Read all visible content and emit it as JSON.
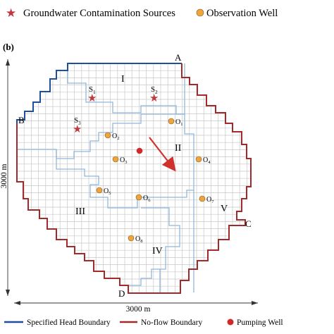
{
  "legend_top": {
    "sources_label": "Groundwater Contamination Sources",
    "well_label": "Observation Well"
  },
  "panel_label": "(b)",
  "corners": [
    "A",
    "B",
    "C",
    "D"
  ],
  "zones": [
    "I",
    "II",
    "III",
    "IV",
    "V"
  ],
  "sources": [
    {
      "label": "S",
      "sub": "1"
    },
    {
      "label": "S",
      "sub": "2"
    },
    {
      "label": "S",
      "sub": "3"
    }
  ],
  "wells": [
    {
      "label": "O",
      "sub": "1"
    },
    {
      "label": "O",
      "sub": "2"
    },
    {
      "label": "O",
      "sub": "3"
    },
    {
      "label": "O",
      "sub": "4"
    },
    {
      "label": "O",
      "sub": "5"
    },
    {
      "label": "O",
      "sub": "6"
    },
    {
      "label": "O",
      "sub": "7"
    },
    {
      "label": "O",
      "sub": "8"
    }
  ],
  "dimensions": {
    "x_label": "3000 m",
    "y_label": "3000 m"
  },
  "legend_bottom": {
    "head_label": "Specified Head Boundary",
    "noflow_label": "No-flow Boundary",
    "pump_label": "Pumping Well"
  },
  "colors": {
    "head_boundary": "#1f4e9c",
    "noflow_boundary": "#a32a2a",
    "grid": "#c7c7c7",
    "zone_boundary": "#8fb8dc",
    "source_star": "#c0393f",
    "well": "#f0a53c",
    "pumping_well": "#cf2a2a",
    "flow_arrow": "#d0312d"
  }
}
